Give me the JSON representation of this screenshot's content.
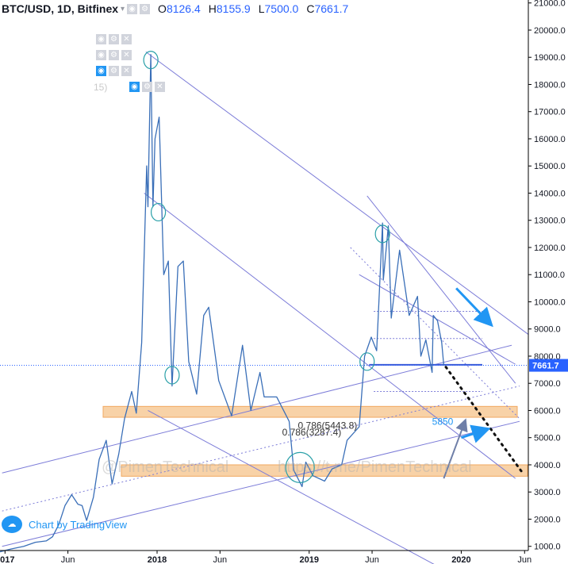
{
  "header": {
    "symbol": "BTC/USD, 1D, Bitfinex",
    "open_label": "O",
    "open": "8126.4",
    "high_label": "H",
    "high": "8155.9",
    "low_label": "L",
    "low": "7500.0",
    "close_label": "C",
    "close": "7661.7"
  },
  "indicator_faded_text": "15)",
  "watermark": "@PimenTechnical",
  "watermark_url": "https://t.me/PimenTechnical",
  "branding": {
    "text": "Chart by TradingView",
    "logo_icon": "tradingview-cloud-icon"
  },
  "colors": {
    "price_line": "#3a6fb8",
    "trendline": "#7c7cd8",
    "support_zone": "#f5c38a",
    "marker_circle": "#2aa0a8",
    "arrow": "#2196f3",
    "projection_dots": "#111111",
    "last_price_bg": "#2962ff"
  },
  "chart_data": {
    "type": "line",
    "title": "BTC/USD, 1D, Bitfinex",
    "x_ticks": [
      "2017",
      "Jun",
      "2018",
      "Jun",
      "2019",
      "Jun",
      "2020",
      "Jun"
    ],
    "y_ticks": [
      "21000.0",
      "20000.0",
      "19000.0",
      "18000.0",
      "17000.0",
      "16000.0",
      "15000.0",
      "14000.0",
      "13000.0",
      "12000.0",
      "11000.0",
      "10000.0",
      "9000.0",
      "8000.0",
      "7000.0",
      "6000.0",
      "5000.0",
      "4000.0",
      "3000.0",
      "2000.0",
      "1000.0"
    ],
    "ylim": [
      700,
      21000
    ],
    "xlim": [
      "2016-12-20",
      "2020-06-10"
    ],
    "last_price": "7661.7",
    "series": [
      {
        "values": [
          [
            "2016-12-20",
            800
          ],
          [
            "2017-01-15",
            900
          ],
          [
            "2017-02-15",
            1000
          ],
          [
            "2017-03-15",
            1150
          ],
          [
            "2017-04-10",
            1200
          ],
          [
            "2017-04-25",
            1350
          ],
          [
            "2017-05-10",
            1800
          ],
          [
            "2017-05-25",
            2500
          ],
          [
            "2017-06-10",
            2900
          ],
          [
            "2017-06-25",
            2550
          ],
          [
            "2017-07-05",
            2500
          ],
          [
            "2017-07-16",
            1950
          ],
          [
            "2017-08-01",
            2800
          ],
          [
            "2017-08-15",
            4200
          ],
          [
            "2017-09-01",
            4900
          ],
          [
            "2017-09-15",
            3300
          ],
          [
            "2017-10-01",
            4400
          ],
          [
            "2017-10-15",
            5700
          ],
          [
            "2017-11-01",
            6700
          ],
          [
            "2017-11-12",
            5900
          ],
          [
            "2017-11-25",
            8500
          ],
          [
            "2017-12-07",
            15000
          ],
          [
            "2017-12-10",
            13500
          ],
          [
            "2017-12-17",
            19100
          ],
          [
            "2017-12-22",
            13500
          ],
          [
            "2017-12-27",
            16000
          ],
          [
            "2018-01-06",
            16800
          ],
          [
            "2018-01-17",
            11000
          ],
          [
            "2018-01-28",
            11500
          ],
          [
            "2018-02-06",
            6900
          ],
          [
            "2018-02-20",
            11300
          ],
          [
            "2018-03-05",
            11500
          ],
          [
            "2018-03-18",
            7800
          ],
          [
            "2018-04-06",
            6600
          ],
          [
            "2018-04-23",
            9500
          ],
          [
            "2018-05-05",
            9800
          ],
          [
            "2018-05-29",
            7100
          ],
          [
            "2018-06-29",
            5800
          ],
          [
            "2018-07-25",
            8400
          ],
          [
            "2018-08-14",
            6000
          ],
          [
            "2018-09-05",
            7400
          ],
          [
            "2018-09-15",
            6500
          ],
          [
            "2018-10-15",
            6500
          ],
          [
            "2018-11-14",
            5600
          ],
          [
            "2018-11-25",
            3800
          ],
          [
            "2018-12-15",
            3200
          ],
          [
            "2018-12-24",
            4100
          ],
          [
            "2019-01-10",
            3600
          ],
          [
            "2019-02-07",
            3400
          ],
          [
            "2019-02-25",
            3850
          ],
          [
            "2019-03-20",
            4000
          ],
          [
            "2019-04-02",
            4900
          ],
          [
            "2019-05-01",
            5400
          ],
          [
            "2019-05-14",
            8000
          ],
          [
            "2019-05-30",
            8700
          ],
          [
            "2019-06-12",
            8200
          ],
          [
            "2019-06-26",
            12900
          ],
          [
            "2019-06-28",
            10800
          ],
          [
            "2019-07-10",
            12800
          ],
          [
            "2019-07-17",
            9400
          ],
          [
            "2019-08-06",
            11900
          ],
          [
            "2019-08-29",
            9500
          ],
          [
            "2019-09-18",
            10200
          ],
          [
            "2019-09-26",
            8000
          ],
          [
            "2019-10-08",
            8600
          ],
          [
            "2019-10-23",
            7400
          ],
          [
            "2019-10-26",
            9500
          ],
          [
            "2019-11-05",
            9300
          ],
          [
            "2019-11-15",
            8500
          ],
          [
            "2019-11-20",
            7661.7
          ]
        ]
      }
    ],
    "zones": [
      {
        "from": 5750,
        "to": 6150
      },
      {
        "from": 3580,
        "to": 4000
      }
    ],
    "horizontal_levels": [
      9650,
      8650,
      7680,
      6700
    ],
    "annotations": [
      {
        "text": "0.786(5443.8)",
        "x": "2018-12-05",
        "y": 5443.8
      },
      {
        "text": "0.786(3287.4)",
        "x": "2018-10-28",
        "y": 5200
      },
      {
        "text": "5850",
        "x": "2019-10-23",
        "y": 5590
      }
    ],
    "circle_markers": [
      {
        "x": "2017-12-17",
        "y": 18900
      },
      {
        "x": "2018-01-04",
        "y": 13300
      },
      {
        "x": "2018-02-06",
        "y": 7300
      },
      {
        "x": "2018-12-10",
        "y": 3900
      },
      {
        "x": "2019-05-20",
        "y": 7800
      },
      {
        "x": "2019-06-26",
        "y": 12500
      }
    ],
    "trendlines": [
      {
        "from": [
          "2017-12-05",
          19200
        ],
        "to": [
          "2020-06-10",
          8800
        ]
      },
      {
        "from": [
          "2019-05-20",
          13900
        ],
        "to": [
          "2020-05-10",
          7000
        ]
      },
      {
        "from": [
          "2019-05-01",
          11000
        ],
        "to": [
          "2020-05-10",
          7700
        ]
      },
      {
        "from": [
          "2017-12-01",
          14000
        ],
        "to": [
          "2020-05-10",
          3500
        ]
      },
      {
        "from": [
          "2017-12-10",
          6000
        ],
        "to": [
          "2020-01-01",
          -200
        ]
      },
      {
        "from": [
          "2016-12-25",
          3700
        ],
        "to": [
          "2020-05-01",
          8400
        ]
      },
      {
        "from": [
          "2016-12-25",
          1000
        ],
        "to": [
          "2020-05-20",
          5600
        ]
      }
    ],
    "dotted_lines": [
      {
        "from": [
          "2016-12-25",
          2300
        ],
        "to": [
          "2020-05-20",
          6900
        ]
      },
      {
        "from": [
          "2019-04-10",
          12000
        ],
        "to": [
          "2020-05-20",
          5700
        ]
      }
    ],
    "projection": {
      "from": [
        "2019-11-25",
        7600
      ],
      "to": [
        "2020-05-25",
        3750
      ]
    },
    "arrows": [
      {
        "from": [
          "2019-12-20",
          10500
        ],
        "to": [
          "2020-03-10",
          9200
        ]
      },
      {
        "from": [
          "2020-01-01",
          5000
        ],
        "to": [
          "2020-03-01",
          5300
        ]
      },
      {
        "from": [
          "2019-11-20",
          3500
        ],
        "to": [
          "2020-01-10",
          5600
        ]
      }
    ]
  }
}
